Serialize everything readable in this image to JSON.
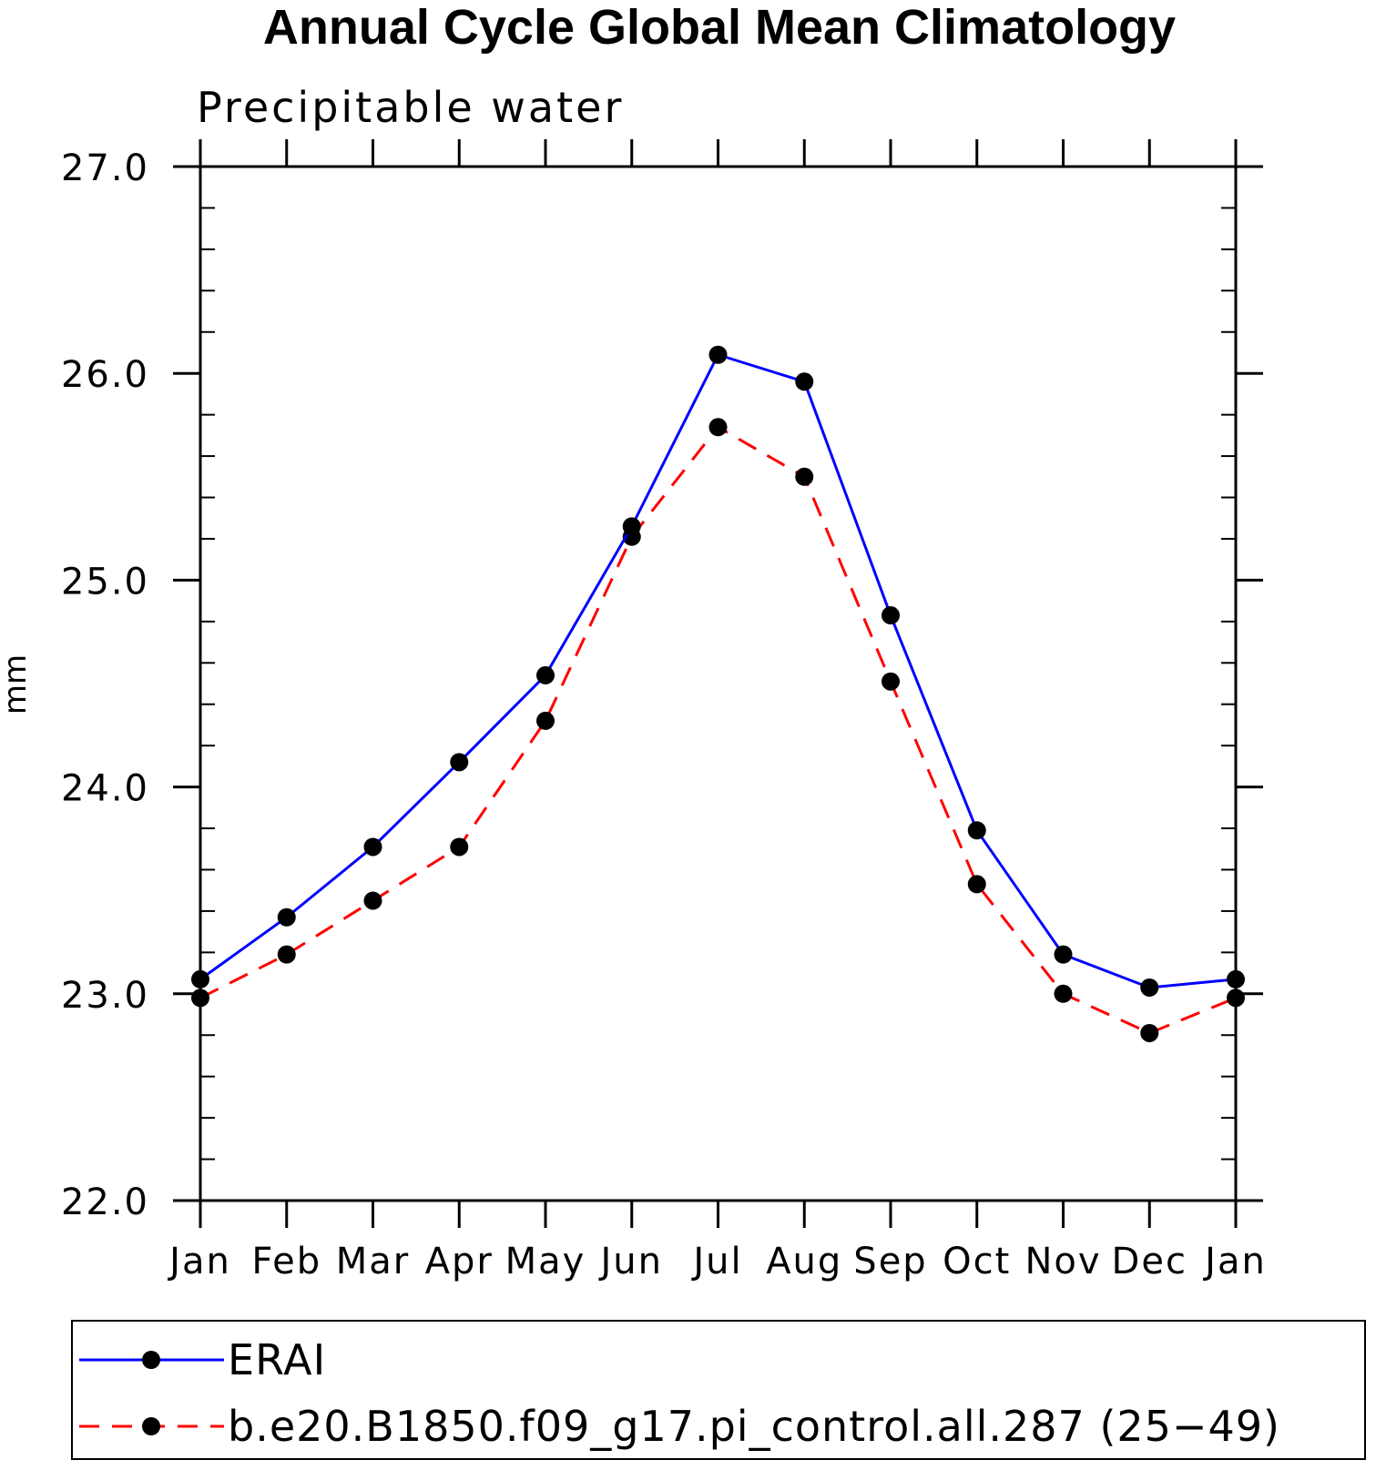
{
  "chart_data": {
    "type": "line",
    "title": "Annual Cycle Global Mean Climatology",
    "subtitle": "Precipitable water",
    "xlabel": "",
    "ylabel": "mm",
    "categories": [
      "Jan",
      "Feb",
      "Mar",
      "Apr",
      "May",
      "Jun",
      "Jul",
      "Aug",
      "Sep",
      "Oct",
      "Nov",
      "Dec",
      "Jan"
    ],
    "ylim": [
      22.0,
      27.0
    ],
    "yticks": [
      "22.0",
      "23.0",
      "24.0",
      "25.0",
      "26.0",
      "27.0"
    ],
    "grid": false,
    "legend_position": "bottom",
    "series": [
      {
        "name": "ERAI",
        "color": "#0000ff",
        "line_style": "solid",
        "marker": "filled-circle",
        "values": [
          23.07,
          23.37,
          23.71,
          24.12,
          24.54,
          25.26,
          26.09,
          25.96,
          24.83,
          23.79,
          23.19,
          23.03,
          23.07
        ]
      },
      {
        "name": "b.e20.B1850.f09_g17.pi_control.all.287 (25−49)",
        "color": "#ff0000",
        "line_style": "dashed",
        "marker": "filled-circle",
        "values": [
          22.98,
          23.19,
          23.45,
          23.71,
          24.32,
          25.21,
          25.74,
          25.5,
          24.51,
          23.53,
          23.0,
          22.81,
          22.98
        ]
      }
    ]
  }
}
